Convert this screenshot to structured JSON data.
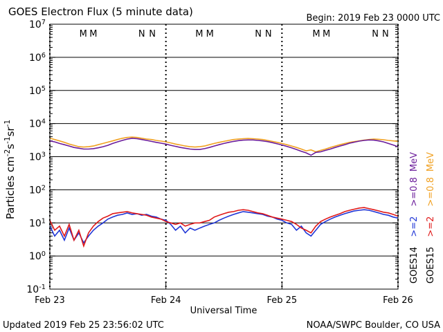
{
  "chart_data": {
    "type": "line",
    "title": "GOES Electron Flux (5 minute data)",
    "begin": "Begin: 2019 Feb 23 0000 UTC",
    "xlabel": "Universal Time",
    "ylabel": "Particles cm^{-2}s^{-1}sr^{-1}",
    "updated": "Updated 2019 Feb 25 23:56:02 UTC",
    "source": "NOAA/SWPC Boulder, CO USA",
    "log_scale": true,
    "grid": true,
    "threshold": 1000,
    "legend_unit": "MeV",
    "satellites": [
      "GOES14",
      "GOES15"
    ],
    "xlim": [
      0,
      72
    ],
    "xticks": [
      {
        "value": 0,
        "label": "Feb 23"
      },
      {
        "value": 24,
        "label": "Feb 24"
      },
      {
        "value": 48,
        "label": "Feb 25"
      },
      {
        "value": 72,
        "label": "Feb 26"
      }
    ],
    "ylim": [
      0.1,
      10000000
    ],
    "yticks": [
      {
        "value": 0.1,
        "label": "10^{-1}"
      },
      {
        "value": 1,
        "label": "10^{0}"
      },
      {
        "value": 10,
        "label": "10^{1}"
      },
      {
        "value": 100,
        "label": "10^{2}"
      },
      {
        "value": 1000,
        "label": "10^{3}"
      },
      {
        "value": 10000,
        "label": "10^{4}"
      },
      {
        "value": 100000,
        "label": "10^{5}"
      },
      {
        "value": 1000000,
        "label": "10^{6}"
      },
      {
        "value": 10000000,
        "label": "10^{7}"
      }
    ],
    "markers": [
      {
        "text": "M",
        "x": 6.9,
        "color": "#1f35d6"
      },
      {
        "text": "M",
        "x": 9.0,
        "color": "#e01818"
      },
      {
        "text": "N",
        "x": 19.0,
        "color": "#1f35d6"
      },
      {
        "text": "N",
        "x": 21.2,
        "color": "#e01818"
      },
      {
        "text": "M",
        "x": 30.9,
        "color": "#1f35d6"
      },
      {
        "text": "M",
        "x": 33.1,
        "color": "#e01818"
      },
      {
        "text": "N",
        "x": 43.1,
        "color": "#1f35d6"
      },
      {
        "text": "N",
        "x": 45.2,
        "color": "#e01818"
      },
      {
        "text": "M",
        "x": 55.1,
        "color": "#1f35d6"
      },
      {
        "text": "M",
        "x": 57.2,
        "color": "#e01818"
      },
      {
        "text": "N",
        "x": 67.3,
        "color": "#1f35d6"
      },
      {
        "text": "N",
        "x": 69.4,
        "color": "#e01818"
      }
    ],
    "x": [
      0,
      1,
      2,
      3,
      4,
      5,
      6,
      7,
      8,
      9,
      10,
      11,
      12,
      13,
      14,
      15,
      16,
      17,
      18,
      19,
      20,
      21,
      22,
      23,
      24,
      25,
      26,
      27,
      28,
      29,
      30,
      31,
      32,
      33,
      34,
      35,
      36,
      37,
      38,
      39,
      40,
      41,
      42,
      43,
      44,
      45,
      46,
      47,
      48,
      49,
      50,
      51,
      52,
      53,
      54,
      55,
      56,
      57,
      58,
      59,
      60,
      61,
      62,
      63,
      64,
      65,
      66,
      67,
      68,
      69,
      70,
      71,
      72
    ],
    "series": [
      {
        "name": ">=0.8",
        "satellite": "GOES15",
        "color": "#f0a020",
        "values": [
          3600,
          3300,
          3000,
          2700,
          2400,
          2200,
          2000,
          1950,
          2000,
          2100,
          2300,
          2500,
          2750,
          3000,
          3300,
          3600,
          3800,
          3900,
          3800,
          3600,
          3400,
          3300,
          3100,
          2950,
          2800,
          2600,
          2400,
          2250,
          2100,
          2000,
          1950,
          2000,
          2100,
          2300,
          2500,
          2700,
          2900,
          3100,
          3300,
          3400,
          3500,
          3550,
          3500,
          3400,
          3300,
          3100,
          2900,
          2700,
          2500,
          2300,
          2100,
          1900,
          1700,
          1500,
          1600,
          1400,
          1550,
          1700,
          1900,
          2100,
          2300,
          2500,
          2700,
          2850,
          3000,
          3150,
          3300,
          3400,
          3350,
          3250,
          3100,
          3000,
          2900
        ]
      },
      {
        "name": ">=0.8",
        "satellite": "GOES14",
        "color": "#6a1b9a",
        "values": [
          3000,
          2800,
          2500,
          2300,
          2100,
          1900,
          1800,
          1700,
          1700,
          1750,
          1850,
          2000,
          2200,
          2500,
          2800,
          3100,
          3400,
          3600,
          3500,
          3300,
          3100,
          2900,
          2700,
          2550,
          2400,
          2200,
          2050,
          1900,
          1800,
          1700,
          1650,
          1650,
          1750,
          1900,
          2100,
          2300,
          2500,
          2700,
          2900,
          3050,
          3150,
          3200,
          3200,
          3100,
          3000,
          2850,
          2650,
          2450,
          2250,
          2050,
          1850,
          1650,
          1450,
          1300,
          1100,
          1350,
          1400,
          1550,
          1700,
          1900,
          2100,
          2300,
          2550,
          2750,
          2950,
          3100,
          3200,
          3150,
          3000,
          2800,
          2500,
          2250,
          2000
        ]
      },
      {
        "name": ">=2",
        "satellite": "GOES14",
        "color": "#1f35d6",
        "values": [
          8,
          4,
          6,
          3,
          7,
          3,
          5,
          2.5,
          4,
          6,
          8,
          10,
          13,
          15,
          17,
          18,
          20,
          18,
          19,
          17,
          18,
          16,
          15,
          13,
          12,
          9,
          6,
          8,
          5,
          7,
          6,
          7,
          8,
          9,
          10,
          12,
          14,
          16,
          18,
          20,
          22,
          21,
          20,
          19,
          18,
          16,
          15,
          13,
          12,
          10,
          9,
          6,
          8,
          5,
          4,
          6,
          9,
          11,
          13,
          15,
          17,
          19,
          21,
          23,
          24,
          25,
          24,
          22,
          20,
          18,
          17,
          15,
          14
        ]
      },
      {
        "name": ">=2",
        "satellite": "GOES15",
        "color": "#e01818",
        "values": [
          12,
          6,
          8,
          4,
          9,
          3,
          6,
          2,
          5,
          8,
          11,
          14,
          16,
          19,
          20,
          21,
          22,
          20,
          19,
          18,
          17,
          15,
          14,
          13,
          11,
          10,
          9,
          10,
          8,
          9,
          10,
          10,
          11,
          12,
          15,
          17,
          19,
          21,
          22,
          24,
          25,
          24,
          22,
          20,
          19,
          17,
          15,
          14,
          13,
          12,
          11,
          9,
          7,
          6,
          5,
          8,
          11,
          13,
          15,
          17,
          19,
          22,
          24,
          26,
          28,
          29,
          27,
          25,
          23,
          21,
          20,
          18,
          16
        ]
      }
    ]
  }
}
